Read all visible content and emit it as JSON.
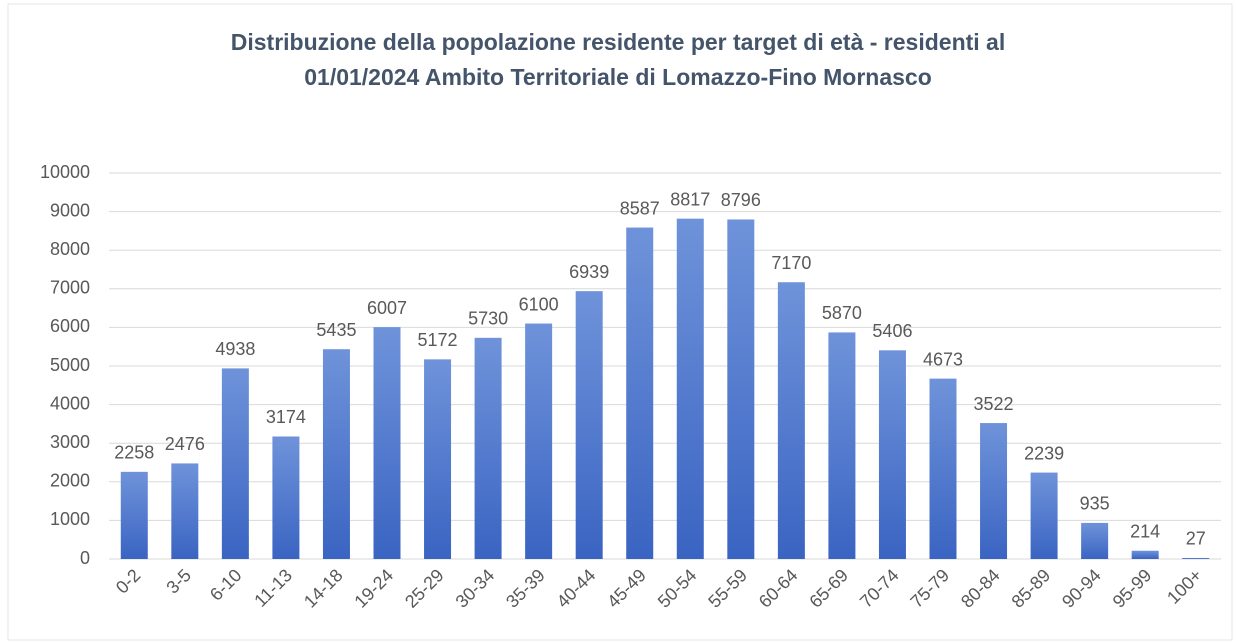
{
  "chart_data": {
    "type": "bar",
    "title": [
      "Distribuzione della popolazione residente per target di età - residenti al",
      "01/01/2024 Ambito Territoriale di Lomazzo-Fino Mornasco"
    ],
    "categories": [
      "0-2",
      "3-5",
      "6-10",
      "11-13",
      "14-18",
      "19-24",
      "25-29",
      "30-34",
      "35-39",
      "40-44",
      "45-49",
      "50-54",
      "55-59",
      "60-64",
      "65-69",
      "70-74",
      "75-79",
      "80-84",
      "85-89",
      "90-94",
      "95-99",
      "100+"
    ],
    "values": [
      2258,
      2476,
      4938,
      3174,
      5435,
      6007,
      5172,
      5730,
      6100,
      6939,
      8587,
      8817,
      8796,
      7170,
      5870,
      5406,
      4673,
      3522,
      2239,
      935,
      214,
      27
    ],
    "color": "#4472c4",
    "ylim": [
      0,
      10000
    ],
    "yticks": [
      0,
      1000,
      2000,
      3000,
      4000,
      5000,
      6000,
      7000,
      8000,
      9000,
      10000
    ],
    "grid": true
  }
}
